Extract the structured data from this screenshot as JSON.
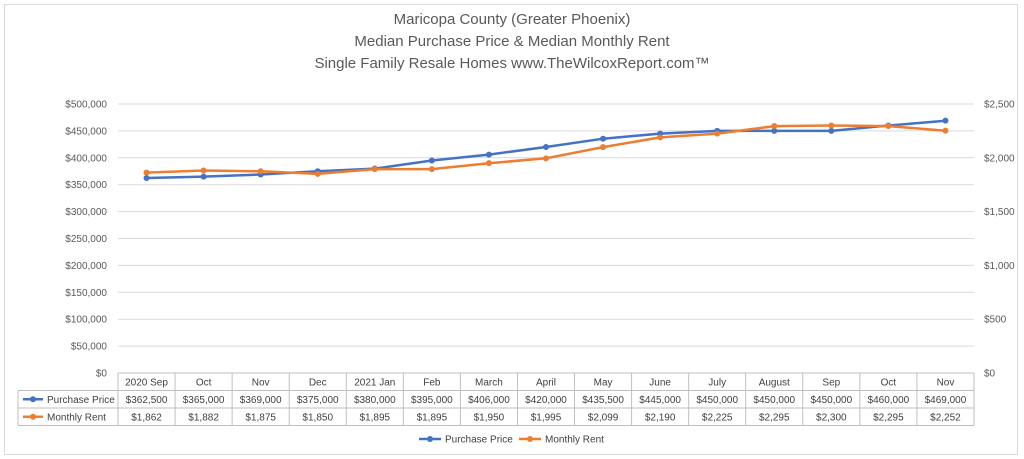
{
  "chart_data": {
    "type": "line",
    "title": [
      "Maricopa County (Greater Phoenix)",
      "Median Purchase Price & Median Monthly Rent",
      "Single Family Resale Homes www.TheWilcoxReport.com™"
    ],
    "categories": [
      "2020 Sep",
      "Oct",
      "Nov",
      "Dec",
      "2021 Jan",
      "Feb",
      "March",
      "April",
      "May",
      "June",
      "July",
      "August",
      "Sep",
      "Oct",
      "Nov"
    ],
    "left_axis": {
      "min": 0,
      "max": 500000,
      "ticks": [
        "$0",
        "$50,000",
        "$100,000",
        "$150,000",
        "$200,000",
        "$250,000",
        "$300,000",
        "$350,000",
        "$400,000",
        "$450,000",
        "$500,000"
      ]
    },
    "right_axis": {
      "min": 0,
      "max": 2500,
      "ticks": [
        "$0",
        "$500",
        "$1,000",
        "$1,500",
        "$2,000",
        "$2,500"
      ]
    },
    "grid": true,
    "legend_position": "bottom",
    "series": [
      {
        "name": "Purchase Price",
        "axis": "left",
        "color": "#4472c4",
        "values": [
          362500,
          365000,
          369000,
          375000,
          380000,
          395000,
          406000,
          420000,
          435500,
          445000,
          450000,
          450000,
          450000,
          460000,
          469000
        ],
        "labels": [
          "$362,500",
          "$365,000",
          "$369,000",
          "$375,000",
          "$380,000",
          "$395,000",
          "$406,000",
          "$420,000",
          "$435,500",
          "$445,000",
          "$450,000",
          "$450,000",
          "$450,000",
          "$460,000",
          "$469,000"
        ]
      },
      {
        "name": "Monthly Rent",
        "axis": "right",
        "color": "#ed7d31",
        "values": [
          1862,
          1882,
          1875,
          1850,
          1895,
          1895,
          1950,
          1995,
          2099,
          2190,
          2225,
          2295,
          2300,
          2295,
          2252
        ],
        "labels": [
          "$1,862",
          "$1,882",
          "$1,875",
          "$1,850",
          "$1,895",
          "$1,895",
          "$1,950",
          "$1,995",
          "$2,099",
          "$2,190",
          "$2,225",
          "$2,295",
          "$2,300",
          "$2,295",
          "$2,252"
        ]
      }
    ]
  }
}
